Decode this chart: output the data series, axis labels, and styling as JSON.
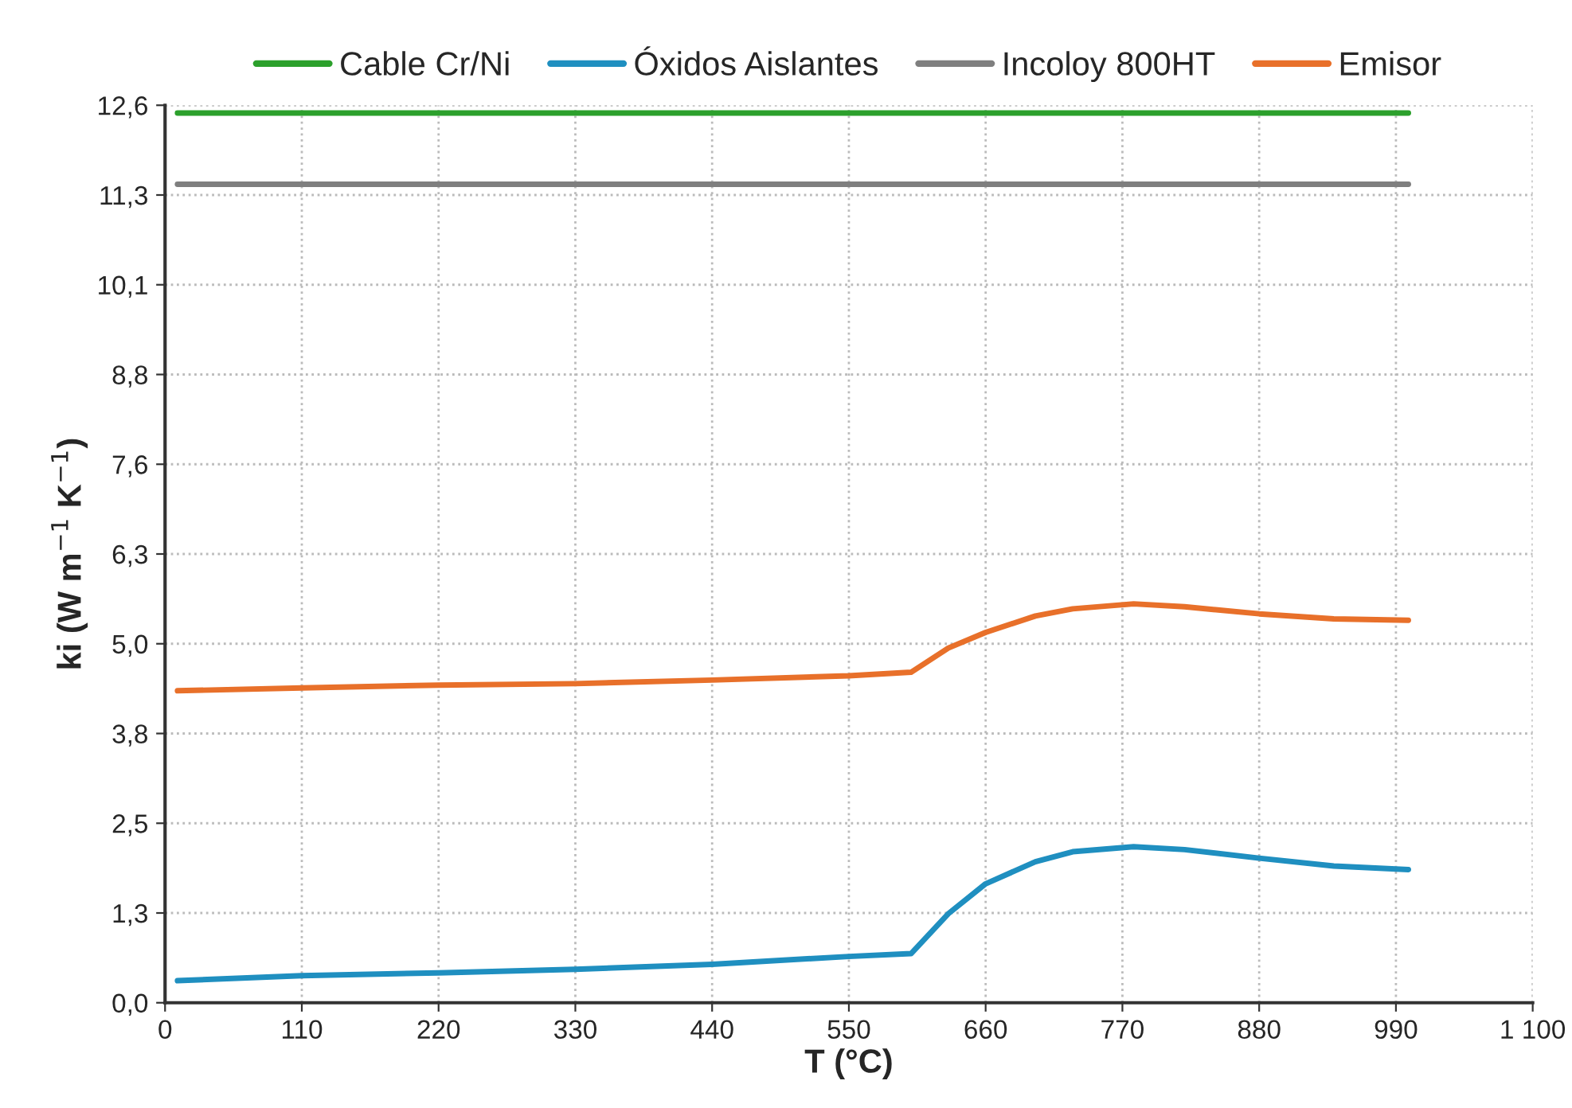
{
  "chart_data": {
    "type": "line",
    "xlabel": "T (°C)",
    "ylabel": "ki (W m$^{−1}$ K$^{−1}$)",
    "xlim": [
      0,
      1100
    ],
    "xticks": [
      0,
      110,
      220,
      330,
      440,
      550,
      660,
      770,
      880,
      990,
      {
        "value": 1100,
        "label": "1 100"
      }
    ],
    "ylim": [
      0,
      12.6
    ],
    "yticks": [
      {
        "value": 0,
        "label": "0,0"
      },
      {
        "value": 1.26,
        "label": "1,3"
      },
      {
        "value": 2.52,
        "label": "2,5"
      },
      {
        "value": 3.78,
        "label": "3,8"
      },
      {
        "value": 5.04,
        "label": "5,0"
      },
      {
        "value": 6.3,
        "label": "6,3"
      },
      {
        "value": 7.56,
        "label": "7,6"
      },
      {
        "value": 8.82,
        "label": "8,8"
      },
      {
        "value": 10.08,
        "label": "10,1"
      },
      {
        "value": 11.34,
        "label": "11,3"
      },
      {
        "value": 12.6,
        "label": "12,6"
      }
    ],
    "grid": true,
    "legend": "top",
    "marker": "none",
    "line_style": "solid",
    "series": [
      {
        "name": "Cable Cr/Ni",
        "color": "#2ca02c",
        "x": [
          10,
          1000
        ],
        "values": [
          12.49,
          12.49
        ]
      },
      {
        "name": "Óxidos Aislantes",
        "color": "#1f8fc0",
        "x": [
          10,
          110,
          220,
          330,
          440,
          550,
          600,
          630,
          660,
          700,
          730,
          779,
          820,
          880,
          940,
          1000
        ],
        "values": [
          0.31,
          0.38,
          0.42,
          0.47,
          0.54,
          0.65,
          0.69,
          1.25,
          1.67,
          1.98,
          2.12,
          2.19,
          2.15,
          2.03,
          1.92,
          1.87
        ]
      },
      {
        "name": "Incoloy 800HT",
        "color": "#7f7f7f",
        "x": [
          10,
          1000
        ],
        "values": [
          11.49,
          11.49
        ]
      },
      {
        "name": "Emisor",
        "color": "#e8702a",
        "x": [
          10,
          110,
          220,
          330,
          440,
          550,
          600,
          630,
          660,
          700,
          730,
          779,
          820,
          880,
          940,
          1000
        ],
        "values": [
          4.38,
          4.42,
          4.46,
          4.48,
          4.53,
          4.59,
          4.64,
          4.98,
          5.2,
          5.43,
          5.53,
          5.6,
          5.56,
          5.46,
          5.39,
          5.37
        ]
      }
    ]
  }
}
